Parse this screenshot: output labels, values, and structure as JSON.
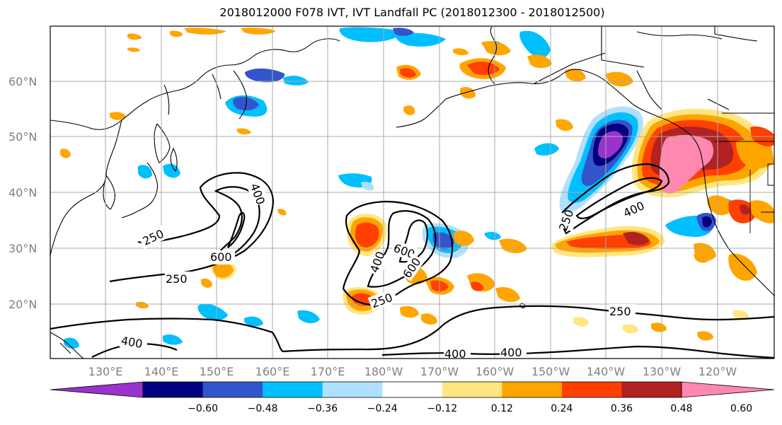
{
  "title": "2018012000 F078 IVT, IVT Landfall PC (2018012300 - 2018012500)",
  "lat_labels": [
    "60°N",
    "50°N",
    "40°N",
    "30°N",
    "20°N"
  ],
  "lon_labels": [
    "130°E",
    "140°E",
    "150°E",
    "160°E",
    "170°E",
    "180°W",
    "170°W",
    "160°W",
    "150°W",
    "140°W",
    "130°W",
    "120°W"
  ],
  "colorbar": {
    "colors": [
      "#9933cc",
      "#000080",
      "#3355cc",
      "#00bfff",
      "#b0e0ff",
      "#ffffff",
      "#ffe680",
      "#ffa500",
      "#ff4000",
      "#b22222",
      "#ff88b0"
    ],
    "tick_labels": [
      "−0.60",
      "−0.48",
      "−0.36",
      "−0.24",
      "−0.12",
      "0.12",
      "0.24",
      "0.36",
      "0.48",
      "0.60"
    ]
  },
  "contour_labels": [
    "400",
    "250",
    "600",
    "400",
    "600",
    "250",
    "600",
    "400",
    "250",
    "400",
    "400",
    "400",
    "250",
    "250"
  ]
}
